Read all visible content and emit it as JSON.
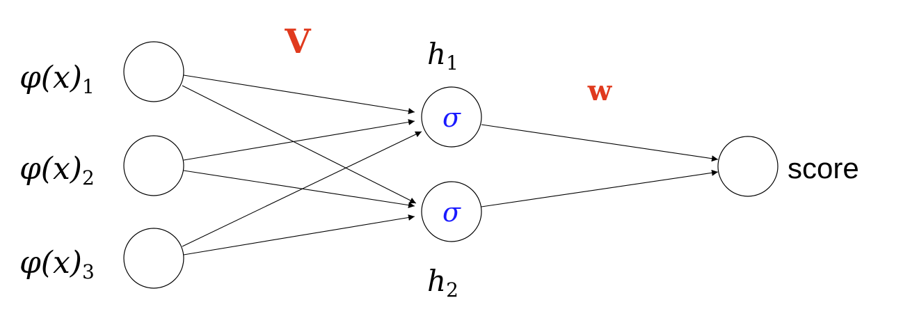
{
  "inputs": [
    {
      "base": "φ(x)",
      "subscript": "1"
    },
    {
      "base": "φ(x)",
      "subscript": "2"
    },
    {
      "base": "φ(x)",
      "subscript": "3"
    }
  ],
  "hidden": [
    {
      "base": "h",
      "subscript": "1",
      "activation": "σ"
    },
    {
      "base": "h",
      "subscript": "2",
      "activation": "σ"
    }
  ],
  "output": {
    "label": "score"
  },
  "weights": {
    "input_to_hidden": "V",
    "hidden_to_output": "w",
    "color": "#e03a1e"
  },
  "activation_color": "#1a1aff"
}
